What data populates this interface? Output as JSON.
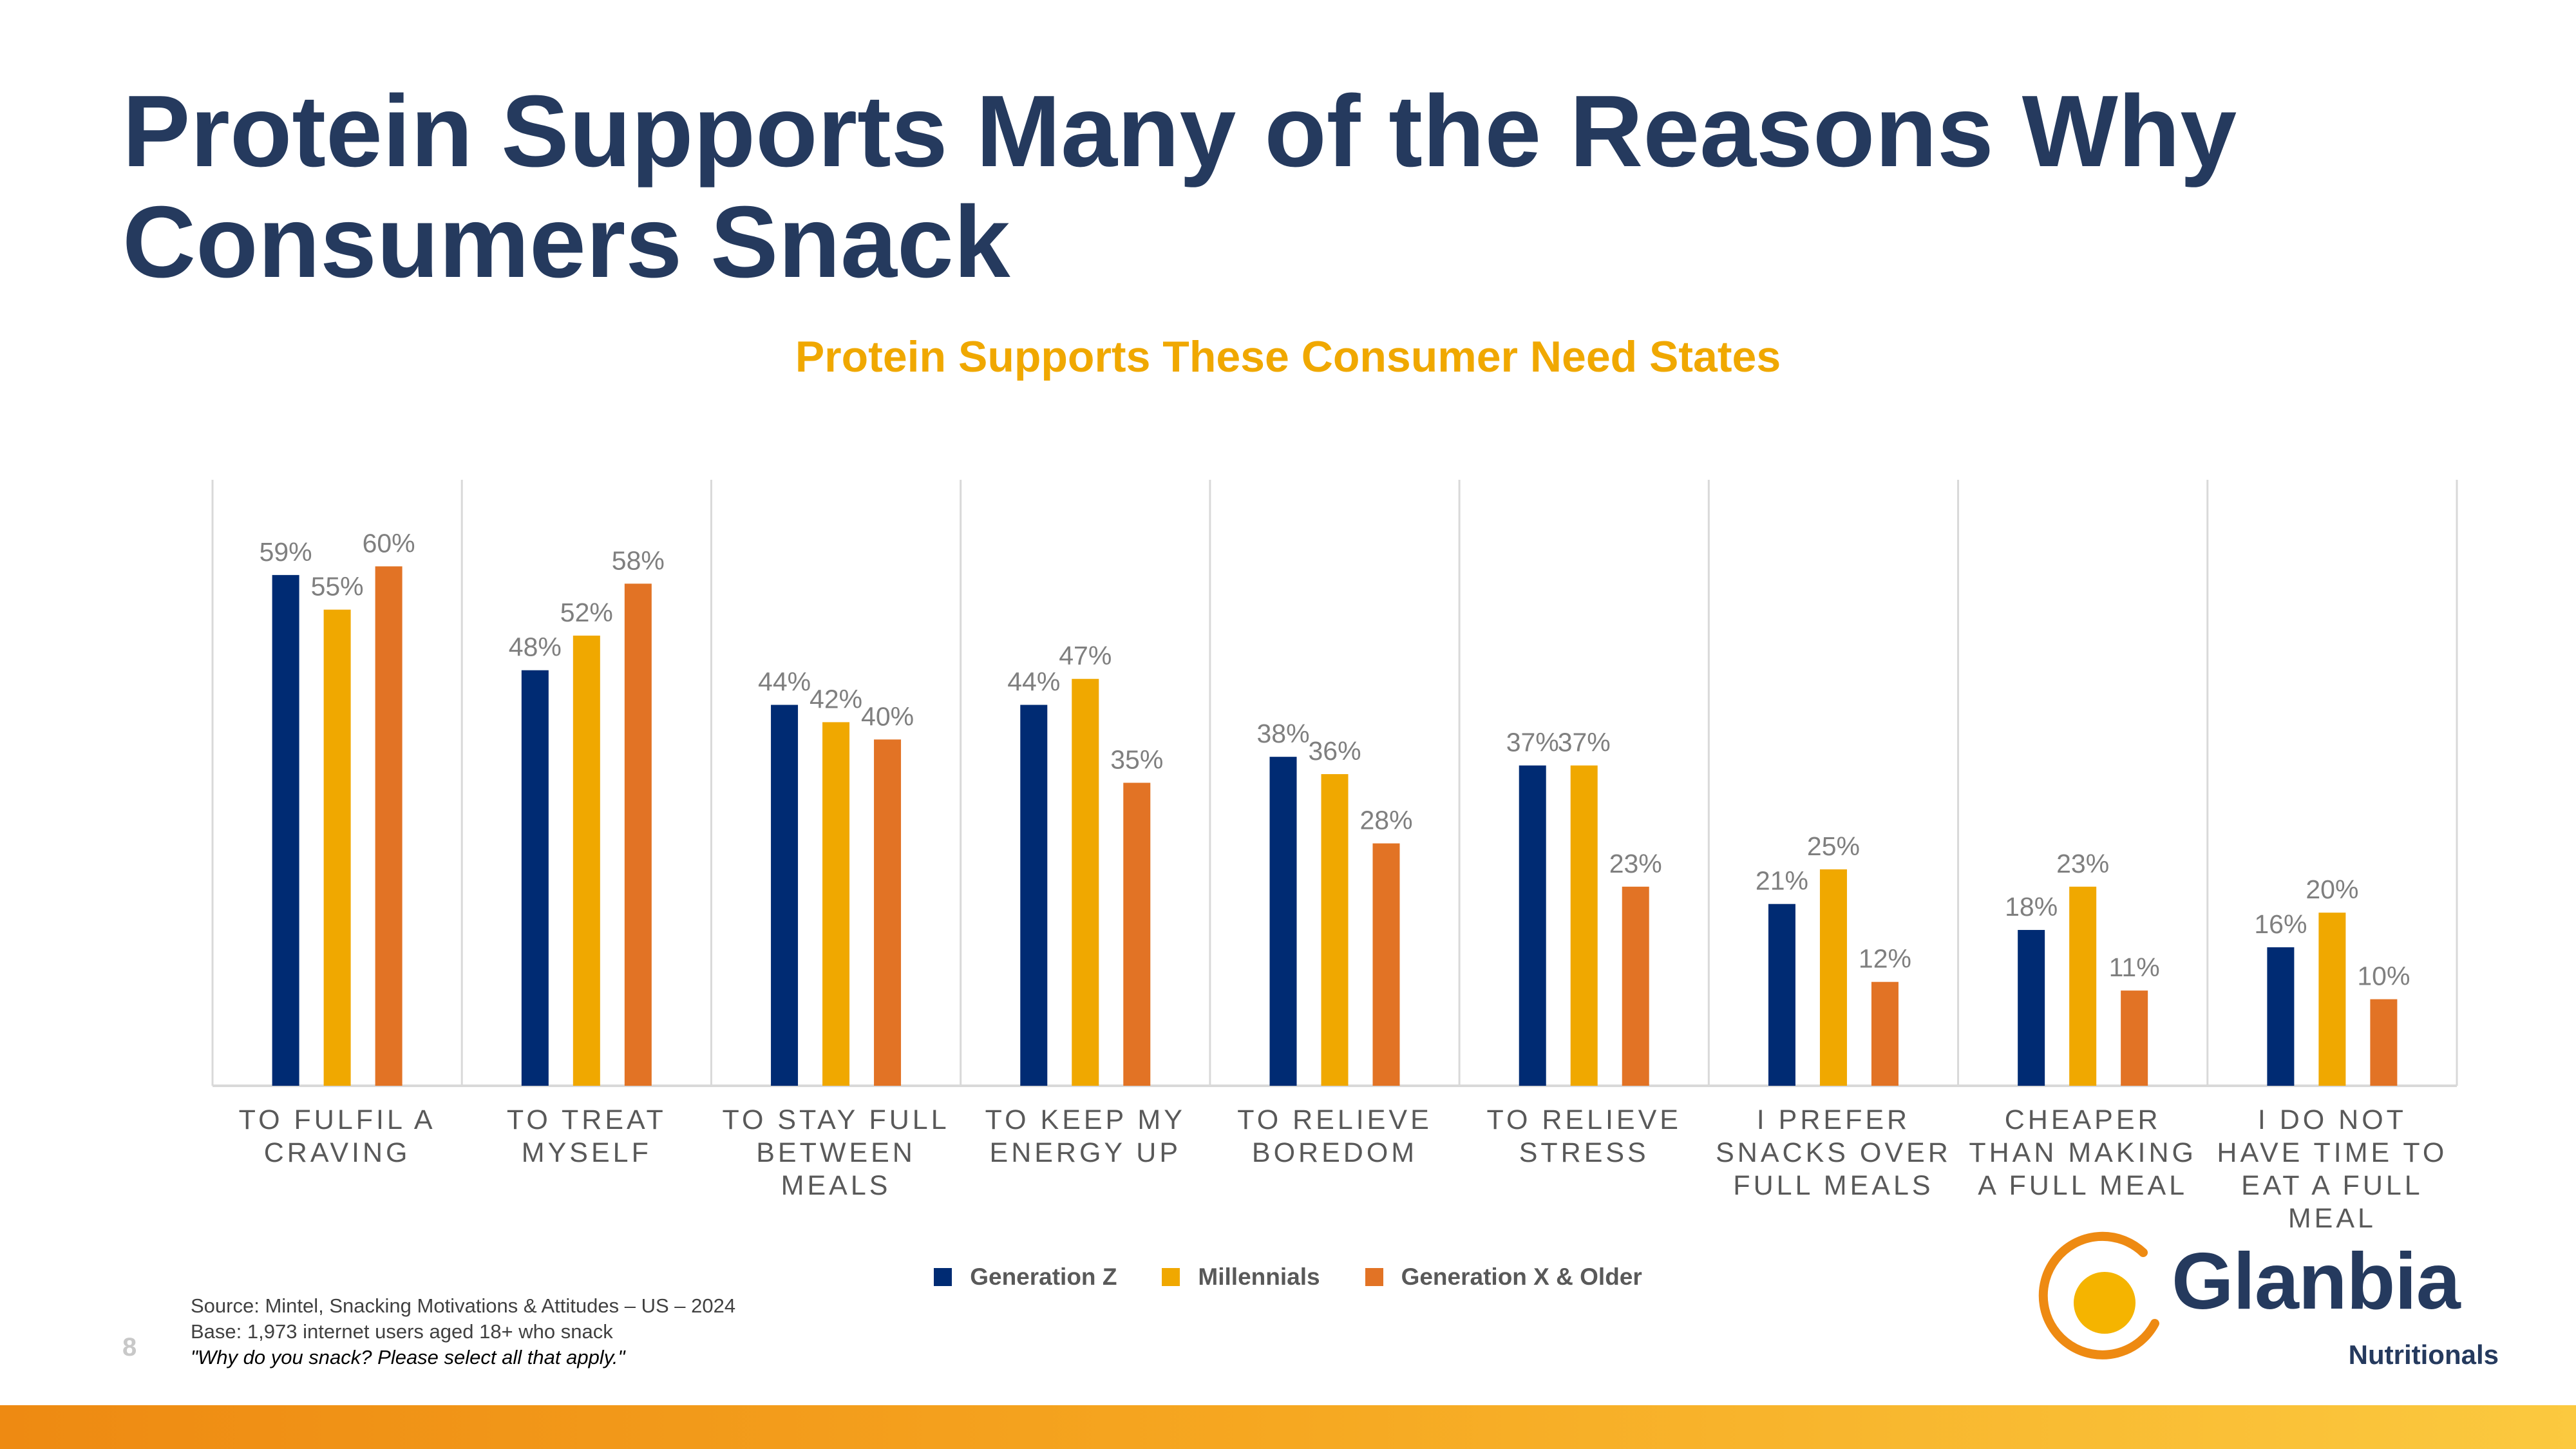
{
  "slide": {
    "title_lines": [
      "Protein Supports Many of the Reasons Why",
      "Consumers Snack"
    ],
    "page_number": "8",
    "source_lines": [
      "Source: Mintel, Snacking Motivations & Attitudes – US – 2024",
      "Base: 1,973 internet users aged 18+ who snack",
      "\"Why do you snack? Please select all that apply.\""
    ],
    "logo": {
      "word": "Glanbia",
      "sub": "Nutritionals"
    }
  },
  "colors": {
    "gen_z": "#002b73",
    "millennials": "#f0a800",
    "gen_x": "#e27325",
    "title": "#253a5e",
    "subtitle": "#f0a800"
  },
  "chart_data": {
    "type": "bar",
    "title": "Protein Supports These Consumer Need States",
    "xlabel": "",
    "ylabel": "",
    "ylim": [
      0,
      70
    ],
    "grid": false,
    "legend": "bottom",
    "categories": [
      [
        "TO FULFIL A",
        "CRAVING"
      ],
      [
        "TO TREAT",
        "MYSELF"
      ],
      [
        "TO STAY FULL",
        "BETWEEN",
        "MEALS"
      ],
      [
        "TO KEEP MY",
        "ENERGY UP"
      ],
      [
        "TO RELIEVE",
        "BOREDOM"
      ],
      [
        "TO RELIEVE",
        "STRESS"
      ],
      [
        "I PREFER",
        "SNACKS OVER",
        "FULL MEALS"
      ],
      [
        "CHEAPER",
        "THAN MAKING",
        "A FULL MEAL"
      ],
      [
        "I DO NOT",
        "HAVE TIME TO",
        "EAT A FULL",
        "MEAL"
      ]
    ],
    "series": [
      {
        "name": "Generation Z",
        "values": [
          59,
          48,
          44,
          44,
          38,
          37,
          21,
          18,
          16
        ],
        "labels": [
          "59%",
          "48%",
          "44%",
          "44%",
          "38%",
          "37%",
          "21%",
          "18%",
          "16%"
        ]
      },
      {
        "name": "Millennials",
        "values": [
          55,
          52,
          42,
          47,
          36,
          37,
          25,
          23,
          20
        ],
        "labels": [
          "55%",
          "52%",
          "42%",
          "47%",
          "36%",
          "37%",
          "25%",
          "23%",
          "20%"
        ]
      },
      {
        "name": "Generation X & Older",
        "values": [
          60,
          58,
          40,
          35,
          28,
          23,
          12,
          11,
          10
        ],
        "labels": [
          "60%",
          "58%",
          "40%",
          "35%",
          "28%",
          "23%",
          "12%",
          "11%",
          "10%"
        ]
      }
    ]
  }
}
